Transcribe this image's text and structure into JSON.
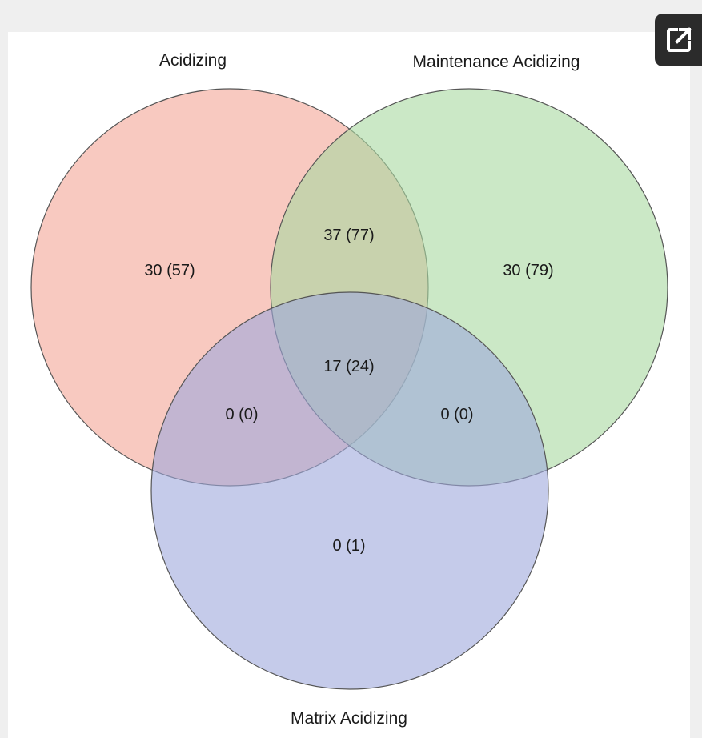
{
  "diagram": {
    "type": "venn3",
    "sets": [
      {
        "name": "Acidizing",
        "color": "#f4a596"
      },
      {
        "name": "Maintenance Acidizing",
        "color": "#a8d8a0"
      },
      {
        "name": "Matrix Acidizing",
        "color": "#9ea8dc"
      }
    ],
    "regions": {
      "acidizing_only": "30 (57)",
      "maintenance_only": "30 (79)",
      "acidizing_maintenance": "37 (77)",
      "all_three": "17 (24)",
      "acidizing_matrix": "0 (0)",
      "maintenance_matrix": "0 (0)",
      "matrix_only": "0 (1)"
    },
    "outline_color": "#555555"
  },
  "toolbar": {
    "open_external_icon": "external-link-icon"
  }
}
